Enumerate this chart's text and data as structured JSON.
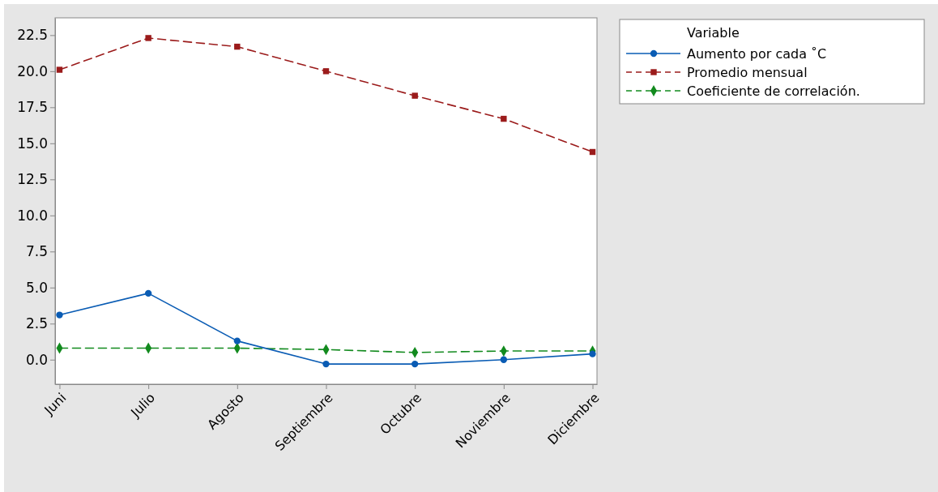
{
  "chart_data": {
    "type": "line",
    "categories": [
      "Juni",
      "Julio",
      "Agosto",
      "Septiembre",
      "Octubre",
      "Noviembre",
      "Diciembre"
    ],
    "ylim": [
      -1.7,
      23.7
    ],
    "yticks": [
      {
        "value": 0,
        "label": "0.0"
      },
      {
        "value": 2.5,
        "label": "2.5"
      },
      {
        "value": 5,
        "label": "5.0"
      },
      {
        "value": 7.5,
        "label": "7.5"
      },
      {
        "value": 10,
        "label": "10.0"
      },
      {
        "value": 12.5,
        "label": "12.5"
      },
      {
        "value": 15,
        "label": "15.0"
      },
      {
        "value": 17.5,
        "label": "17.5"
      },
      {
        "value": 20,
        "label": "20.0"
      },
      {
        "value": 22.5,
        "label": "22.5"
      }
    ],
    "grid": false,
    "legend": "top right",
    "legend_title": "Variable",
    "series": [
      {
        "name": "Aumento por cada ˚C",
        "color": "#0a5cb4",
        "marker": "circle",
        "line_style": "solid",
        "values": [
          3.1,
          4.6,
          1.3,
          -0.3,
          -0.3,
          0.0,
          0.4
        ]
      },
      {
        "name": "Promedio mensual",
        "color": "#9b1b1b",
        "marker": "square",
        "line_style": "dashed",
        "values": [
          20.1,
          22.3,
          21.7,
          20.0,
          18.3,
          16.7,
          14.4
        ]
      },
      {
        "name": "Coeficiente de correlación.",
        "color": "#128a1e",
        "marker": "diamond",
        "line_style": "dashed",
        "values": [
          0.8,
          0.8,
          0.8,
          0.7,
          0.5,
          0.6,
          0.6
        ]
      }
    ]
  }
}
